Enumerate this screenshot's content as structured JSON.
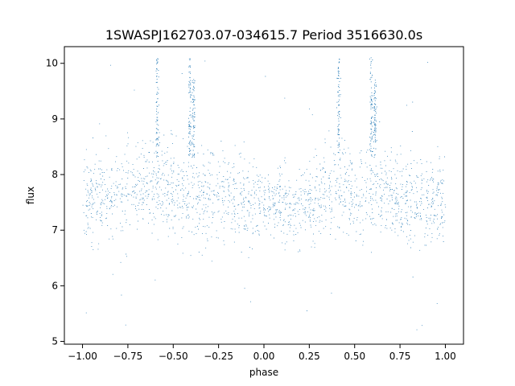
{
  "chart_data": {
    "type": "scatter",
    "title": "1SWASPJ162703.07-034615.7 Period 3516630.0s",
    "xlabel": "phase",
    "ylabel": "flux",
    "xlim": [
      -1.1,
      1.1
    ],
    "ylim": [
      4.95,
      10.3
    ],
    "x_ticks": [
      -1.0,
      -0.75,
      -0.5,
      -0.25,
      0.0,
      0.25,
      0.5,
      0.75,
      1.0
    ],
    "x_tick_labels": [
      "−1.00",
      "−0.75",
      "−0.50",
      "−0.25",
      "0.00",
      "0.25",
      "0.50",
      "0.75",
      "1.00"
    ],
    "y_ticks": [
      5,
      6,
      7,
      8,
      9,
      10
    ],
    "y_tick_labels": [
      "5",
      "6",
      "7",
      "8",
      "9",
      "10"
    ],
    "grid": false,
    "legend": "none",
    "series": [
      {
        "color": "#1f77b4",
        "marker": "dot",
        "x_range": [
          -1.0,
          1.0
        ],
        "typical_flux": [
          6.7,
          8.4
        ],
        "median_flux": 7.6,
        "max_flux": 10.1,
        "min_flux": 5.15,
        "profile": [
          {
            "phase": -1.0,
            "center": 7.6,
            "spread": 0.85
          },
          {
            "phase": -0.85,
            "center": 7.6,
            "spread": 0.8
          },
          {
            "phase": -0.75,
            "center": 7.75,
            "spread": 0.9
          },
          {
            "phase": -0.6,
            "center": 7.8,
            "spread": 0.95
          },
          {
            "phase": -0.45,
            "center": 7.6,
            "spread": 0.85
          },
          {
            "phase": -0.25,
            "center": 7.7,
            "spread": 0.9
          },
          {
            "phase": 0.0,
            "center": 7.5,
            "spread": 0.75
          },
          {
            "phase": 0.2,
            "center": 7.4,
            "spread": 0.7
          },
          {
            "phase": 0.4,
            "center": 7.8,
            "spread": 0.95
          },
          {
            "phase": 0.6,
            "center": 7.7,
            "spread": 0.9
          },
          {
            "phase": 0.8,
            "center": 7.5,
            "spread": 0.85
          },
          {
            "phase": 1.0,
            "center": 7.6,
            "spread": 0.85
          }
        ],
        "spikes": [
          {
            "phase": -0.59,
            "flux_max": 10.1
          },
          {
            "phase": -0.41,
            "flux_max": 10.1
          },
          {
            "phase": -0.39,
            "flux_max": 9.8
          },
          {
            "phase": 0.41,
            "flux_max": 10.1
          },
          {
            "phase": 0.59,
            "flux_max": 10.1
          },
          {
            "phase": 0.61,
            "flux_max": 9.7
          }
        ]
      }
    ]
  }
}
